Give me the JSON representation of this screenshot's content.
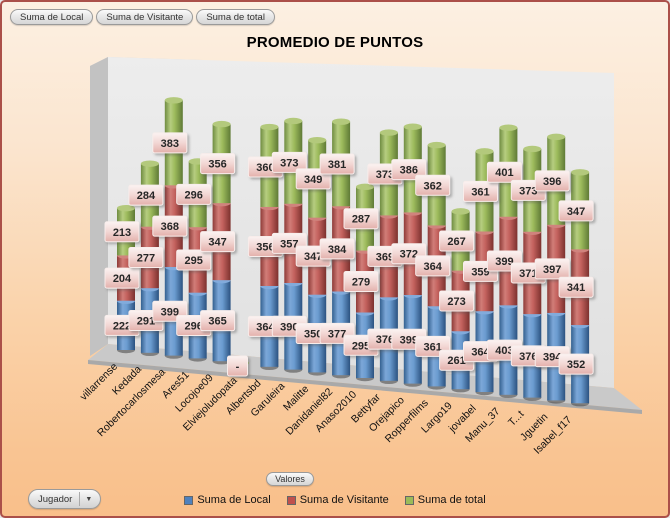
{
  "field_buttons": [
    {
      "label": "Suma de Local"
    },
    {
      "label": "Suma de Visitante"
    },
    {
      "label": "Suma de total"
    }
  ],
  "controls": {
    "values_button": "Valores",
    "axis_dropdown_label": "Jugador"
  },
  "chart_data": {
    "type": "bar",
    "subtype": "3d-stacked-cylinder",
    "title": "PROMEDIO DE PUNTOS",
    "legend_position": "bottom",
    "grid": false,
    "null_display": "-",
    "colors": {
      "wall": "#e9e9e9",
      "floor": "#c6c6c6",
      "label_box_top": "#fbf3f2",
      "label_box_bottom": "#e3b0ab"
    },
    "categories": [
      "villarrense",
      "Kedada",
      "Robertocarlosmesa",
      "Ares51",
      "Locojoe09",
      "Elviejoludopata",
      "Albertsbd",
      "Garuleira",
      "Malitte",
      "Danidaniel82",
      "Anaso2010",
      "Bettyfar",
      "Orejapico",
      "Ropperfilms",
      "Largo19",
      "jovabel",
      "Manu_37",
      "T...t",
      "Jguetin",
      "Isabel_f17"
    ],
    "series": [
      {
        "name": "Suma de Local",
        "color": "#4F81BD",
        "values": [
          222,
          291,
          399,
          296,
          365,
          null,
          364,
          390,
          350,
          377,
          295,
          376,
          399,
          361,
          261,
          364,
          403,
          376,
          394,
          352
        ]
      },
      {
        "name": "Suma de Visitante",
        "color": "#C0504D",
        "values": [
          204,
          277,
          368,
          295,
          347,
          null,
          356,
          357,
          347,
          384,
          279,
          369,
          372,
          364,
          273,
          359,
          399,
          371,
          397,
          341
        ]
      },
      {
        "name": "Suma de total",
        "color": "#9BBB59",
        "values": [
          213,
          284,
          383,
          296,
          356,
          null,
          360,
          373,
          349,
          381,
          287,
          373,
          386,
          362,
          267,
          361,
          401,
          373,
          396,
          347
        ]
      }
    ]
  }
}
